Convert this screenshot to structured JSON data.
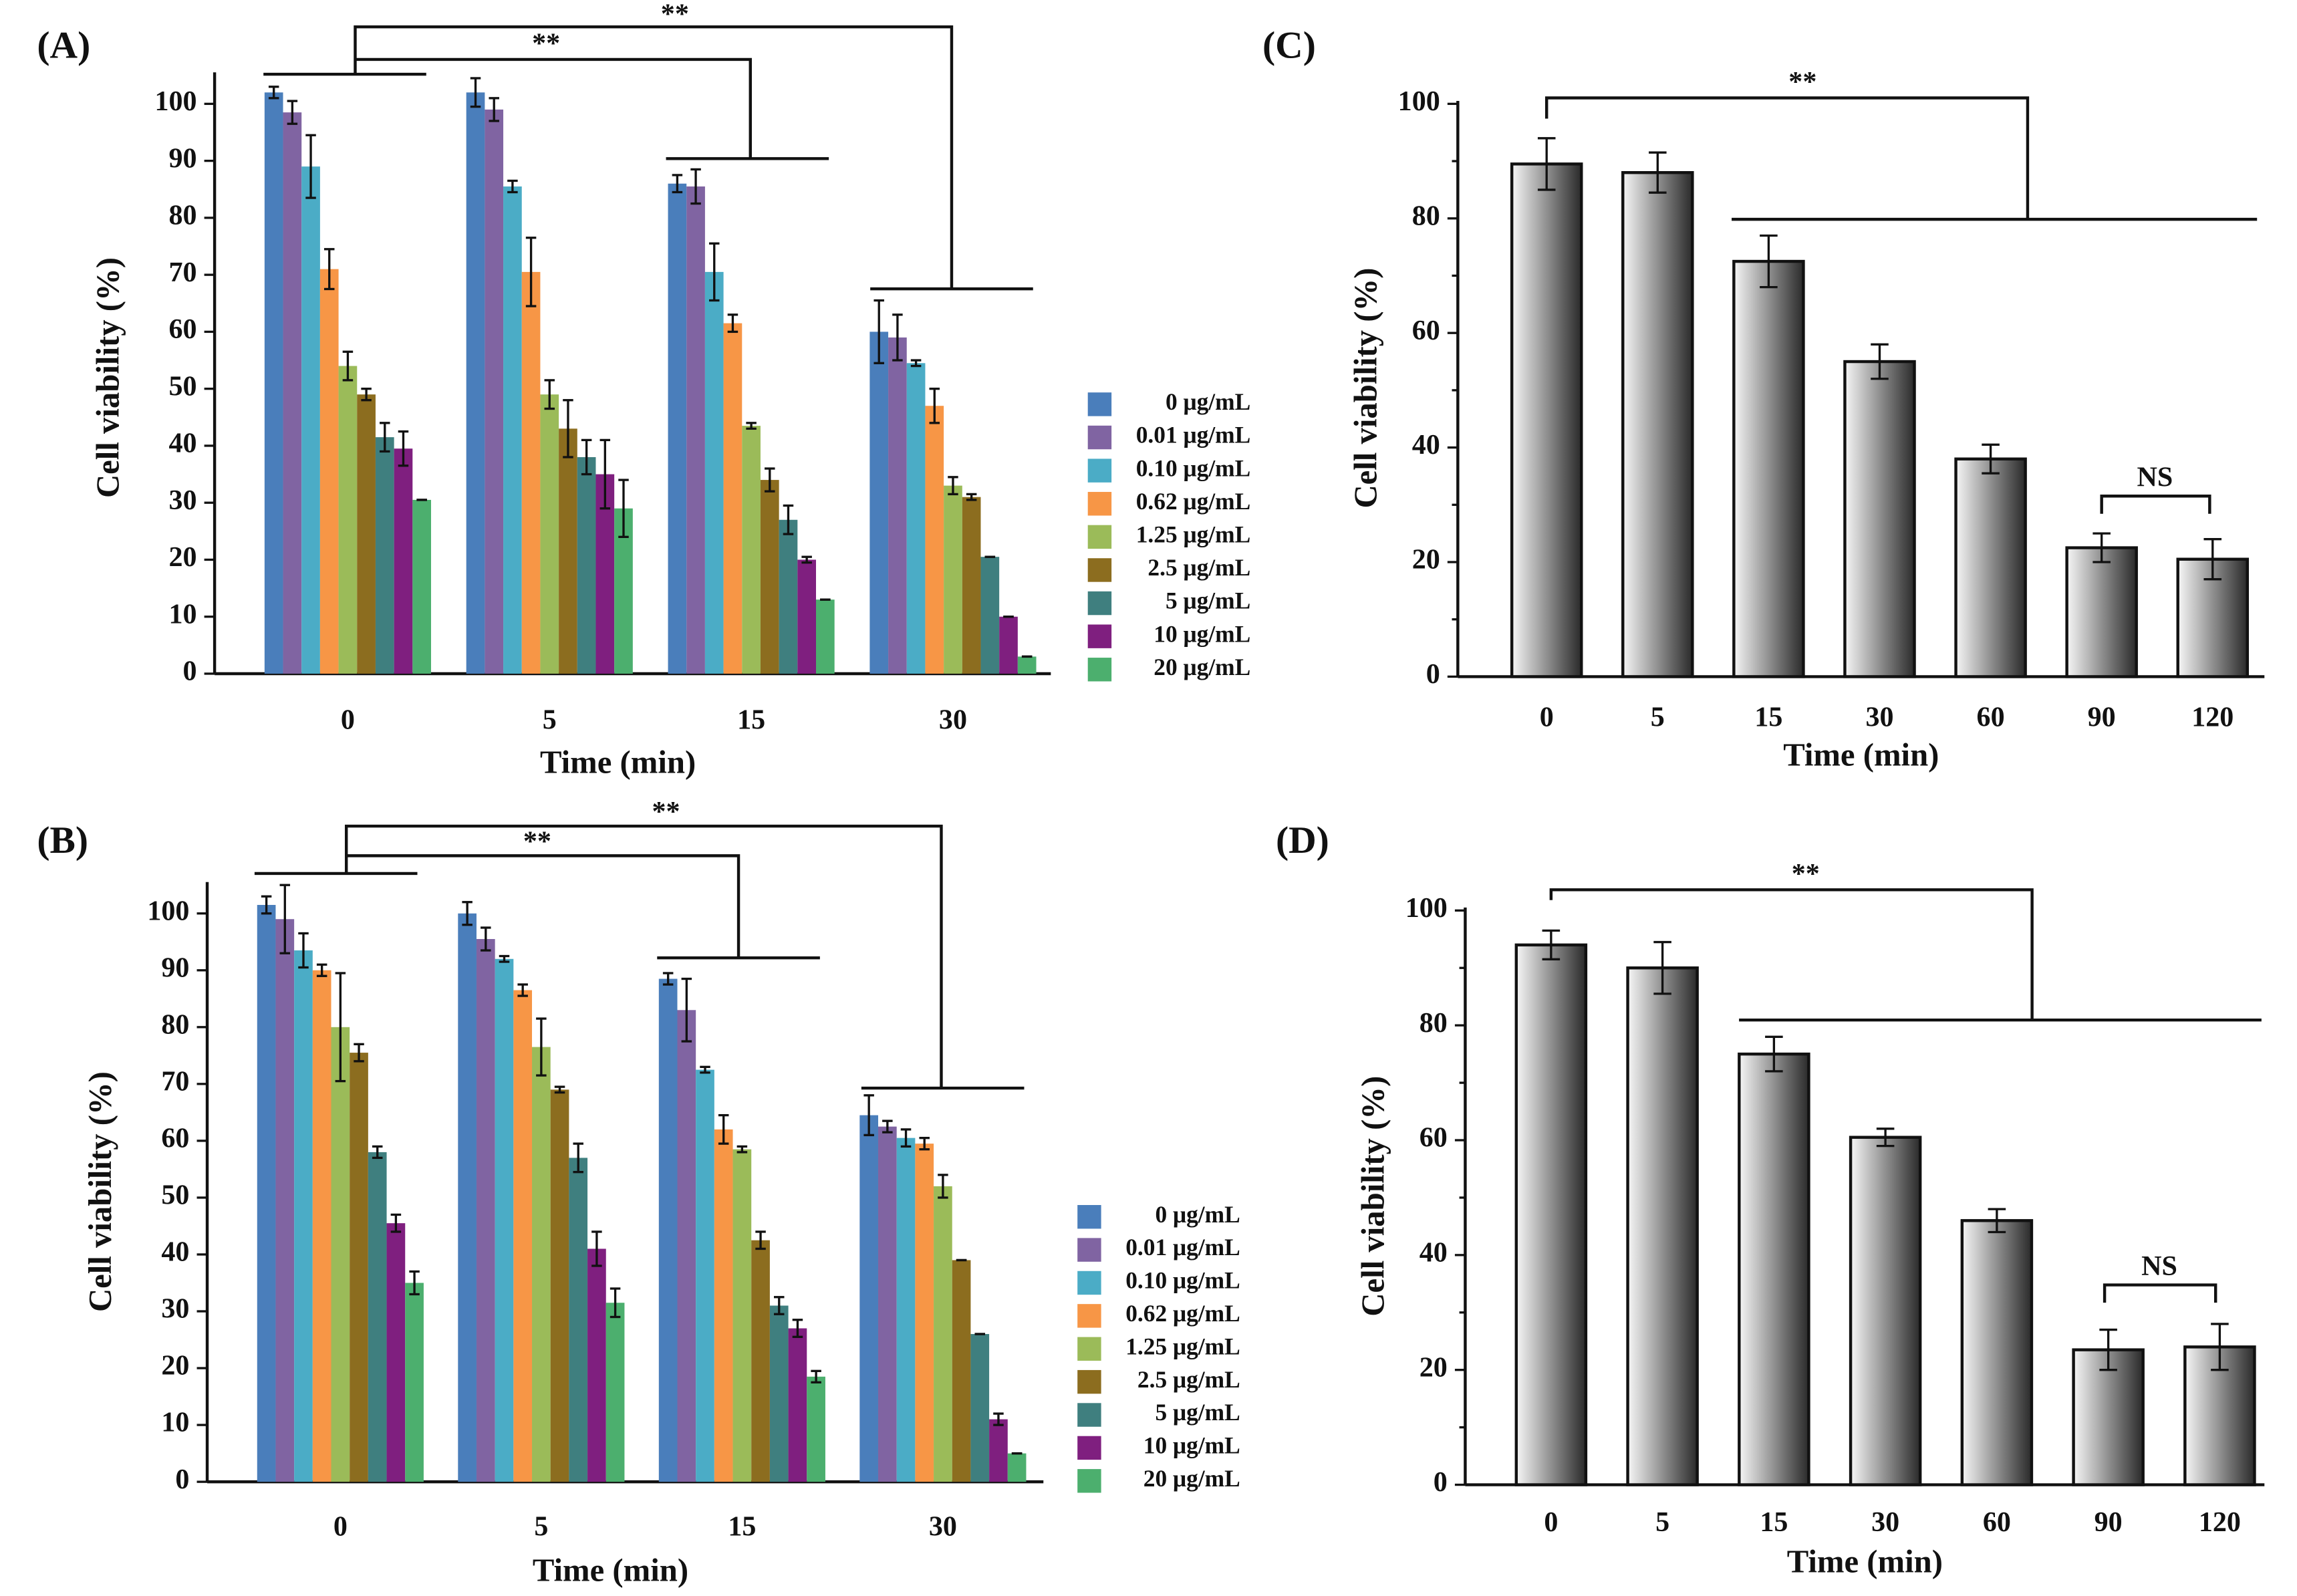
{
  "chart_data": [
    {
      "type": "bar",
      "title": "(A)",
      "x_label": "Time (min)",
      "y_label": "Cell viability (%)",
      "categories": [
        "0",
        "5",
        "15",
        "30"
      ],
      "ylim": [
        0,
        105
      ],
      "yticks": [
        0,
        10,
        20,
        30,
        40,
        50,
        60,
        70,
        80,
        90,
        100
      ],
      "annotations": [
        "**",
        "**"
      ],
      "series": [
        {
          "name": "0 μg/mL",
          "color": "#4a7ebb",
          "values": [
            102,
            102,
            86,
            60
          ],
          "errors": [
            1,
            2.5,
            1.5,
            5.5
          ]
        },
        {
          "name": "0.01 μg/mL",
          "color": "#8064a2",
          "values": [
            98.5,
            99,
            85.5,
            59
          ],
          "errors": [
            2,
            2,
            3,
            4
          ]
        },
        {
          "name": "0.10 μg/mL",
          "color": "#4bacc6",
          "values": [
            89,
            85.5,
            70.5,
            54.5
          ],
          "errors": [
            5.5,
            1,
            5,
            0.5
          ]
        },
        {
          "name": "0.62 μg/mL",
          "color": "#f79646",
          "values": [
            71,
            70.5,
            61.5,
            47
          ],
          "errors": [
            3.5,
            6,
            1.5,
            3
          ]
        },
        {
          "name": "1.25 μg/mL",
          "color": "#9bbb59",
          "values": [
            54,
            49,
            43.5,
            33
          ],
          "errors": [
            2.5,
            2.5,
            0.5,
            1.5
          ]
        },
        {
          "name": "2.5 μg/mL",
          "color": "#8c6d1f",
          "values": [
            49,
            43,
            34,
            31
          ],
          "errors": [
            1,
            5,
            2,
            0.5
          ]
        },
        {
          "name": "5 μg/mL",
          "color": "#3f7f7f",
          "values": [
            41.5,
            38,
            27,
            20.5
          ],
          "errors": [
            2.5,
            3,
            2.5,
            0
          ]
        },
        {
          "name": "10 μg/mL",
          "color": "#7f1f7f",
          "values": [
            39.5,
            35,
            20,
            10
          ],
          "errors": [
            3,
            6,
            0.5,
            0
          ]
        },
        {
          "name": "20 μg/mL",
          "color": "#4caf6e",
          "values": [
            30.5,
            29,
            13,
            3
          ],
          "errors": [
            0,
            5,
            0,
            0
          ]
        }
      ]
    },
    {
      "type": "bar",
      "title": "(B)",
      "x_label": "Time (min)",
      "y_label": "Cell viability (%)",
      "categories": [
        "0",
        "5",
        "15",
        "30"
      ],
      "ylim": [
        0,
        105
      ],
      "yticks": [
        0,
        10,
        20,
        30,
        40,
        50,
        60,
        70,
        80,
        90,
        100
      ],
      "annotations": [
        "**",
        "**"
      ],
      "series": [
        {
          "name": "0 μg/mL",
          "color": "#4a7ebb",
          "values": [
            101.5,
            100,
            88.5,
            64.5
          ],
          "errors": [
            1.5,
            2,
            1,
            3.5
          ]
        },
        {
          "name": "0.01 μg/mL",
          "color": "#8064a2",
          "values": [
            99,
            95.5,
            83,
            62.5
          ],
          "errors": [
            6,
            2,
            5.5,
            1
          ]
        },
        {
          "name": "0.10 μg/mL",
          "color": "#4bacc6",
          "values": [
            93.5,
            92,
            72.5,
            60.5
          ],
          "errors": [
            3,
            0.5,
            0.5,
            1.5
          ]
        },
        {
          "name": "0.62 μg/mL",
          "color": "#f79646",
          "values": [
            90,
            86.5,
            62,
            59.5
          ],
          "errors": [
            1,
            1,
            2.5,
            1
          ]
        },
        {
          "name": "1.25 μg/mL",
          "color": "#9bbb59",
          "values": [
            80,
            76.5,
            58.5,
            52
          ],
          "errors": [
            9.5,
            5,
            0.5,
            2
          ]
        },
        {
          "name": "2.5 μg/mL",
          "color": "#8c6d1f",
          "values": [
            75.5,
            69,
            42.5,
            39
          ],
          "errors": [
            1.5,
            0.5,
            1.5,
            0
          ]
        },
        {
          "name": "5 μg/mL",
          "color": "#3f7f7f",
          "values": [
            58,
            57,
            31,
            26
          ],
          "errors": [
            1,
            2.5,
            1.5,
            0
          ]
        },
        {
          "name": "10 μg/mL",
          "color": "#7f1f7f",
          "values": [
            45.5,
            41,
            27,
            11
          ],
          "errors": [
            1.5,
            3,
            1.5,
            1
          ]
        },
        {
          "name": "20 μg/mL",
          "color": "#4caf6e",
          "values": [
            35,
            31.5,
            18.5,
            5
          ],
          "errors": [
            2,
            2.5,
            1,
            0
          ]
        }
      ]
    },
    {
      "type": "gradient_bar",
      "title": "(C)",
      "x_label": "Time (min)",
      "y_label": "Cell viability (%)",
      "categories": [
        "0",
        "5",
        "15",
        "30",
        "60",
        "90",
        "120"
      ],
      "values": [
        89.5,
        88,
        72.5,
        55,
        38,
        22.5,
        20.5
      ],
      "errors": [
        4.5,
        3.5,
        4.5,
        3,
        2.5,
        2.5,
        3.5
      ],
      "gradient": [
        "#f6f6f6",
        "#2a2a2a"
      ],
      "ylim": [
        0,
        100
      ],
      "yticks": [
        0,
        20,
        40,
        60,
        80,
        100
      ],
      "minor_yticks": [
        10,
        30,
        50,
        70,
        90
      ],
      "annotations": [
        "**",
        "NS"
      ]
    },
    {
      "type": "gradient_bar",
      "title": "(D)",
      "x_label": "Time (min)",
      "y_label": "Cell viability (%)",
      "categories": [
        "0",
        "5",
        "15",
        "30",
        "60",
        "90",
        "120"
      ],
      "values": [
        94,
        90,
        75,
        60.5,
        46,
        23.5,
        24
      ],
      "errors": [
        2.5,
        4.5,
        3,
        1.5,
        2,
        3.5,
        4
      ],
      "gradient": [
        "#f6f6f6",
        "#2a2a2a"
      ],
      "ylim": [
        0,
        100
      ],
      "yticks": [
        0,
        20,
        40,
        60,
        80,
        100
      ],
      "minor_yticks": [
        10,
        30,
        50,
        70,
        90
      ],
      "annotations": [
        "**",
        "NS"
      ]
    }
  ]
}
